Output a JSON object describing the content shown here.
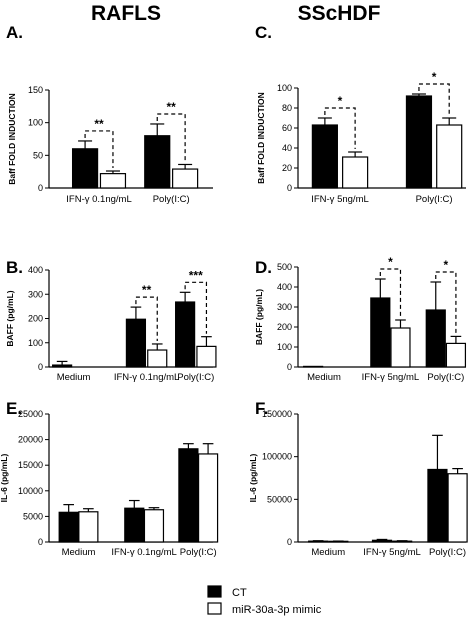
{
  "column_titles": [
    "RAFLS",
    "SScHDF"
  ],
  "legend": {
    "series": [
      {
        "name": "CT",
        "fill": "#000000"
      },
      {
        "name": "miR-30a-3p mimic",
        "fill": "#ffffff"
      }
    ]
  },
  "chart_data": [
    {
      "panel": "A.",
      "type": "bar",
      "ylabel": "Baff FOLD INDUCTION",
      "ylim": [
        0,
        150
      ],
      "yticks": [
        "0",
        "50",
        "100",
        "150"
      ],
      "tick_values": [
        0,
        50,
        100,
        150
      ],
      "categories": [
        "IFN-γ 0.1ng/mL",
        "Poly(I:C)"
      ],
      "series": [
        {
          "name": "CT",
          "values": [
            60,
            80
          ],
          "errors": [
            12,
            18
          ]
        },
        {
          "name": "miR-30a-3p mimic",
          "values": [
            22,
            29
          ],
          "errors": [
            4,
            7
          ]
        }
      ],
      "significance": [
        {
          "category": 0,
          "label": "**"
        },
        {
          "category": 1,
          "label": "**"
        }
      ]
    },
    {
      "panel": "C.",
      "type": "bar",
      "ylabel": "Baff FOLD INDUCTION",
      "ylim": [
        0,
        100
      ],
      "yticks": [
        "0",
        "20",
        "40",
        "60",
        "80",
        "100"
      ],
      "tick_values": [
        0,
        20,
        40,
        60,
        80,
        100
      ],
      "categories": [
        "IFN-γ 5ng/mL",
        "Poly(I:C)"
      ],
      "series": [
        {
          "name": "CT",
          "values": [
            63,
            92
          ],
          "errors": [
            7,
            2
          ]
        },
        {
          "name": "miR-30a-3p mimic",
          "values": [
            31,
            63
          ],
          "errors": [
            5,
            7
          ]
        }
      ],
      "significance": [
        {
          "category": 0,
          "label": "*"
        },
        {
          "category": 1,
          "label": "*"
        }
      ]
    },
    {
      "panel": "B.",
      "type": "bar",
      "ylabel": "BAFF (pg/mL)",
      "ylim": [
        0,
        400
      ],
      "yticks": [
        "0",
        "100",
        "200",
        "300",
        "400"
      ],
      "tick_values": [
        0,
        100,
        200,
        300,
        400
      ],
      "categories": [
        "Medium",
        "IFN-γ 0.1ng/mL",
        "Poly(I:C)"
      ],
      "series": [
        {
          "name": "CT",
          "values": [
            8,
            197,
            268
          ],
          "errors": [
            15,
            50,
            40
          ]
        },
        {
          "name": "miR-30a-3p mimic",
          "values": [
            0,
            70,
            85
          ],
          "errors": [
            0,
            25,
            40
          ]
        }
      ],
      "significance": [
        {
          "category": 1,
          "label": "**"
        },
        {
          "category": 2,
          "label": "***"
        }
      ]
    },
    {
      "panel": "D.",
      "type": "bar",
      "ylabel": "BAFF (pg/mL)",
      "ylim": [
        0,
        500
      ],
      "yticks": [
        "0",
        "100",
        "200",
        "300",
        "400",
        "500"
      ],
      "tick_values": [
        0,
        100,
        200,
        300,
        400,
        500
      ],
      "categories": [
        "Medium",
        "IFN-γ 5ng/mL",
        "Poly(I:C)"
      ],
      "series": [
        {
          "name": "CT",
          "values": [
            3,
            345,
            285
          ],
          "errors": [
            0,
            95,
            140
          ]
        },
        {
          "name": "miR-30a-3p mimic",
          "values": [
            0,
            195,
            118
          ],
          "errors": [
            0,
            40,
            35
          ]
        }
      ],
      "significance": [
        {
          "category": 1,
          "label": "*"
        },
        {
          "category": 2,
          "label": "*"
        }
      ]
    },
    {
      "panel": "E.",
      "type": "bar",
      "ylabel": "IL-6 (pg/mL)",
      "ylim": [
        0,
        25000
      ],
      "yticks": [
        "0",
        "5000",
        "10000",
        "15000",
        "20000",
        "25000"
      ],
      "tick_values": [
        0,
        5000,
        10000,
        15000,
        20000,
        25000
      ],
      "categories": [
        "Medium",
        "IFN-γ 0.1ng/mL",
        "Poly(I:C)"
      ],
      "series": [
        {
          "name": "CT",
          "values": [
            5800,
            6600,
            18200
          ],
          "errors": [
            1500,
            1500,
            1000
          ]
        },
        {
          "name": "miR-30a-3p mimic",
          "values": [
            5900,
            6300,
            17200
          ],
          "errors": [
            600,
            400,
            2000
          ]
        }
      ],
      "significance": []
    },
    {
      "panel": "F.",
      "type": "bar",
      "ylabel": "IL-6 (pg/mL)",
      "ylim": [
        0,
        150000
      ],
      "yticks": [
        "0",
        "50000",
        "100000",
        "150000"
      ],
      "tick_values": [
        0,
        50000,
        100000,
        150000
      ],
      "categories": [
        "Medium",
        "IFN-γ 5ng/mL",
        "Poly(I:C)"
      ],
      "series": [
        {
          "name": "CT",
          "values": [
            1000,
            2000,
            85000
          ],
          "errors": [
            500,
            1000,
            40000
          ]
        },
        {
          "name": "miR-30a-3p mimic",
          "values": [
            800,
            1000,
            80000
          ],
          "errors": [
            300,
            500,
            6000
          ]
        }
      ],
      "significance": []
    }
  ]
}
